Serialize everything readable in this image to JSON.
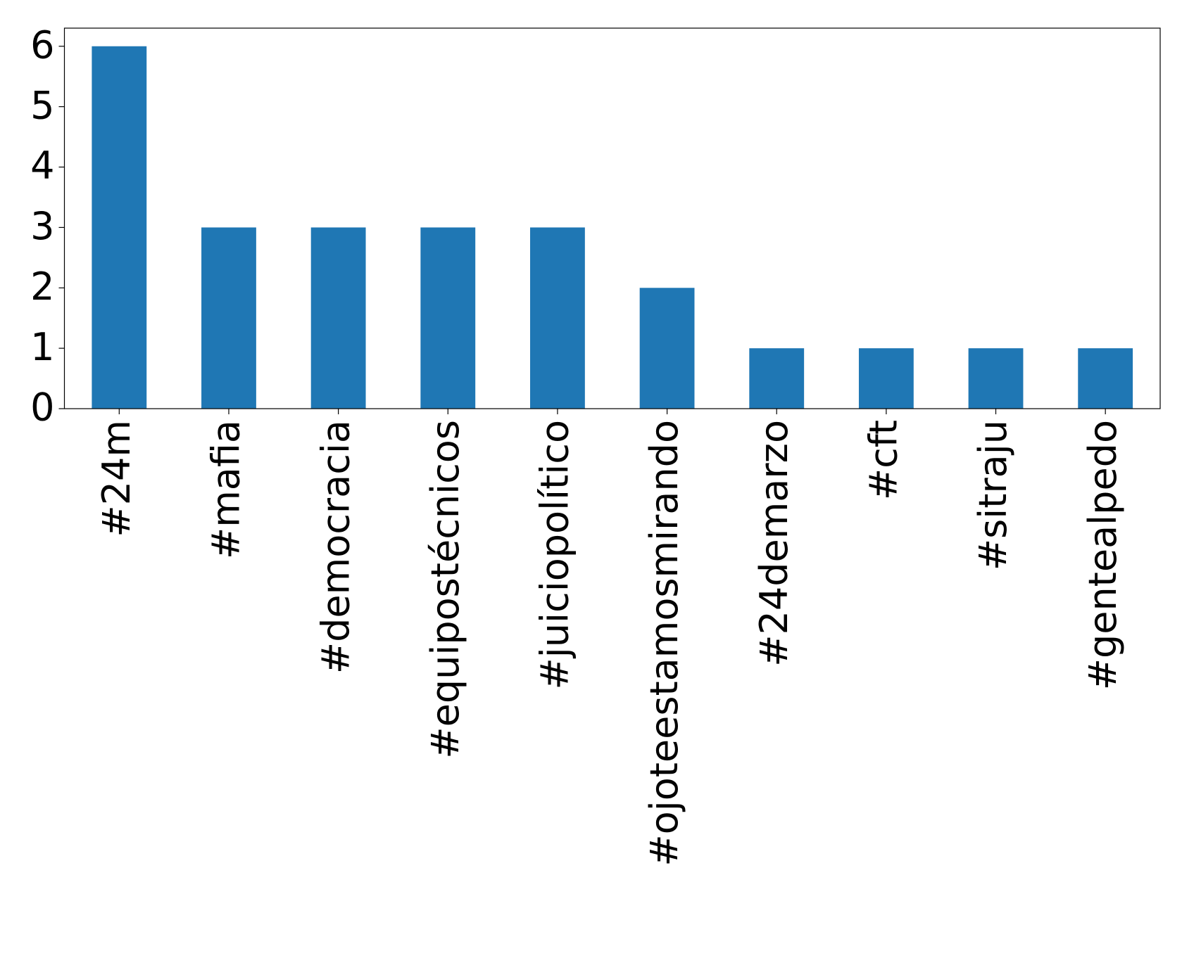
{
  "chart_data": {
    "type": "bar",
    "categories": [
      "#24m",
      "#mafia",
      "#democracia",
      "#equipostécnicos",
      "#juiciopolítico",
      "#ojoteestamosmirando",
      "#24demarzo",
      "#cft",
      "#sitraju",
      "#gentealpedo"
    ],
    "values": [
      6,
      3,
      3,
      3,
      3,
      2,
      1,
      1,
      1,
      1
    ],
    "color": "#1f77b4",
    "ylim": [
      0,
      6.3
    ],
    "yticks": [
      0,
      1,
      2,
      3,
      4,
      5,
      6
    ],
    "grid": false
  }
}
